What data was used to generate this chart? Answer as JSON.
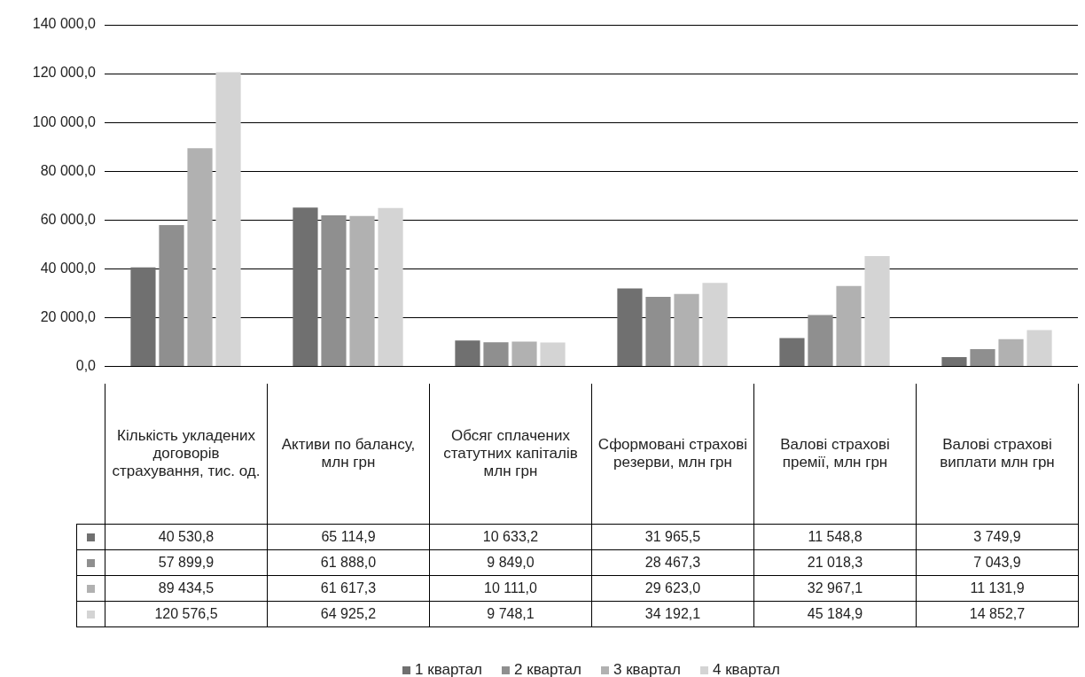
{
  "chart_data": {
    "type": "bar",
    "categories": [
      "Кількість укладених договорів страхування, тис. од.",
      "Активи по балансу, млн грн",
      "Обсяг сплачених статутних капіталів млн грн",
      "Сформовані страхові резерви, млн грн",
      "Валові страхові премії, млн грн",
      "Валові страхові виплати млн грн"
    ],
    "series": [
      {
        "name": "1 квартал",
        "color": "#707070",
        "values": [
          40530.8,
          65114.9,
          10633.2,
          31965.5,
          11548.8,
          3749.9
        ],
        "value_labels": [
          "40 530,8",
          "65 114,9",
          "10 633,2",
          "31 965,5",
          "11 548,8",
          "3 749,9"
        ]
      },
      {
        "name": "2 квартал",
        "color": "#8f8f8f",
        "values": [
          57899.9,
          61888.0,
          9849.0,
          28467.3,
          21018.3,
          7043.9
        ],
        "value_labels": [
          "57 899,9",
          "61 888,0",
          "9 849,0",
          "28 467,3",
          "21 018,3",
          "7 043,9"
        ]
      },
      {
        "name": "3 квартал",
        "color": "#b1b1b1",
        "values": [
          89434.5,
          61617.3,
          10111.0,
          29623.0,
          32967.1,
          11131.9
        ],
        "value_labels": [
          "89 434,5",
          "61 617,3",
          "10 111,0",
          "29 623,0",
          "32 967,1",
          "11 131,9"
        ]
      },
      {
        "name": "4 квартал",
        "color": "#d4d4d4",
        "values": [
          120576.5,
          64925.2,
          9748.1,
          34192.1,
          45184.9,
          14852.7
        ],
        "value_labels": [
          "120 576,5",
          "64 925,2",
          "9 748,1",
          "34 192,1",
          "45 184,9",
          "14 852,7"
        ]
      }
    ],
    "ylim": [
      0,
      140000
    ],
    "yticks": [
      {
        "value": 0,
        "label": "0,0"
      },
      {
        "value": 20000,
        "label": "20 000,0"
      },
      {
        "value": 40000,
        "label": "40 000,0"
      },
      {
        "value": 60000,
        "label": "60 000,0"
      },
      {
        "value": 80000,
        "label": "80 000,0"
      },
      {
        "value": 100000,
        "label": "100 000,0"
      },
      {
        "value": 120000,
        "label": "120 000,0"
      },
      {
        "value": 140000,
        "label": "140 000,0"
      }
    ],
    "grid": "y",
    "legend": "bottom"
  }
}
